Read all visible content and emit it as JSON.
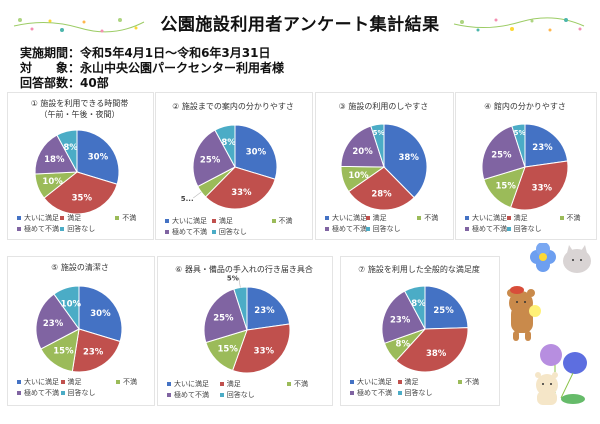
{
  "header": {
    "title": "公園施設利用者アンケート集計結果",
    "period_label": "実施期間：",
    "period_value": "令和5年4月1日～令和6年3月31日",
    "target_label": "対　　象：",
    "target_value": "永山中央公園パークセンター利用者様",
    "responses_label": "回答部数：",
    "responses_value": "40部"
  },
  "legend_labels": [
    "大いに満足",
    "満足",
    "不満",
    "極めて不満",
    "回答なし"
  ],
  "colors": [
    "#4472c4",
    "#c0504d",
    "#9bbb59",
    "#8064a2",
    "#4bacc6"
  ],
  "chart_data": [
    {
      "type": "pie",
      "title": "① 施設を利用できる時間帯",
      "subtitle": "（午前・午後・夜間）",
      "categories": [
        "大いに満足",
        "満足",
        "不満",
        "極めて不満",
        "回答なし"
      ],
      "values": [
        30,
        35,
        10,
        18,
        8
      ],
      "labels": [
        "30%",
        "35%",
        "10%",
        "18%",
        "8%"
      ]
    },
    {
      "type": "pie",
      "title": "② 施設までの案内の分かりやすさ",
      "subtitle": "",
      "categories": [
        "大いに満足",
        "満足",
        "不満",
        "極めて不満",
        "回答なし"
      ],
      "values": [
        30,
        33,
        5,
        25,
        8
      ],
      "labels": [
        "30%",
        "33%",
        "5...",
        "25%",
        "8%"
      ]
    },
    {
      "type": "pie",
      "title": "③ 施設の利用のしやすさ",
      "subtitle": "",
      "categories": [
        "大いに満足",
        "満足",
        "不満",
        "極めて不満",
        "回答なし"
      ],
      "values": [
        38,
        28,
        10,
        20,
        5
      ],
      "labels": [
        "38%",
        "28%",
        "10%",
        "20%",
        "5%"
      ]
    },
    {
      "type": "pie",
      "title": "④ 館内の分かりやすさ",
      "subtitle": "",
      "categories": [
        "大いに満足",
        "満足",
        "不満",
        "極めて不満",
        "回答なし"
      ],
      "values": [
        23,
        33,
        15,
        25,
        5
      ],
      "labels": [
        "23%",
        "33%",
        "15%",
        "25%",
        "5%"
      ]
    },
    {
      "type": "pie",
      "title": "⑤ 施設の清潔さ",
      "subtitle": "",
      "categories": [
        "大いに満足",
        "満足",
        "不満",
        "極めて不満",
        "回答なし"
      ],
      "values": [
        30,
        23,
        15,
        23,
        10
      ],
      "labels": [
        "30%",
        "23%",
        "15%",
        "23%",
        "10%"
      ]
    },
    {
      "type": "pie",
      "title": "⑥ 器具・備品の手入れの行き届き具合",
      "subtitle": "",
      "categories": [
        "大いに満足",
        "満足",
        "不満",
        "極めて不満",
        "回答なし"
      ],
      "values": [
        23,
        33,
        15,
        25,
        5
      ],
      "labels": [
        "23%",
        "33%",
        "15%",
        "25%",
        "5%"
      ]
    },
    {
      "type": "pie",
      "title": "⑦ 施設を利用した全般的な満足度",
      "subtitle": "",
      "categories": [
        "大いに満足",
        "満足",
        "不満",
        "極めて不満",
        "回答なし"
      ],
      "values": [
        25,
        38,
        8,
        23,
        8
      ],
      "labels": [
        "25%",
        "38%",
        "8%",
        "23%",
        "8%"
      ]
    }
  ]
}
